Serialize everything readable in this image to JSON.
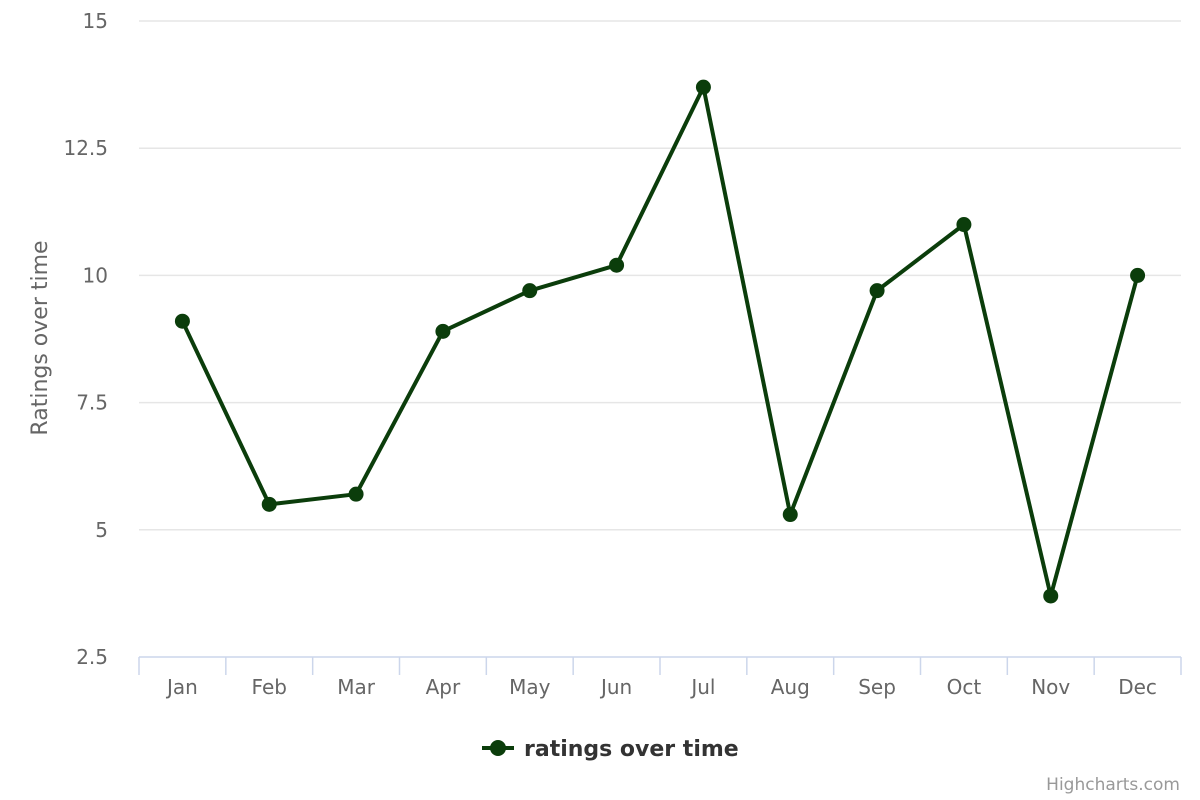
{
  "chart_data": {
    "type": "line",
    "title": "",
    "xlabel": "",
    "ylabel": "Ratings over time",
    "categories": [
      "Jan",
      "Feb",
      "Mar",
      "Apr",
      "May",
      "Jun",
      "Jul",
      "Aug",
      "Sep",
      "Oct",
      "Nov",
      "Dec"
    ],
    "series": [
      {
        "name": "ratings over time",
        "color": "#0b3d0b",
        "values": [
          9.1,
          5.5,
          5.7,
          8.9,
          9.7,
          10.2,
          13.7,
          5.3,
          9.7,
          11.0,
          3.7,
          10.0
        ]
      }
    ],
    "ylim": [
      2.5,
      15
    ],
    "yticks": [
      "2.5",
      "5",
      "7.5",
      "10",
      "12.5",
      "15"
    ],
    "grid": true,
    "legend_position": "bottom-center"
  },
  "credits": "Highcharts.com",
  "colors": {
    "series": "#0b3d0b",
    "grid": "#e6e6e6",
    "axis": "#ccd6eb",
    "text": "#666666"
  }
}
